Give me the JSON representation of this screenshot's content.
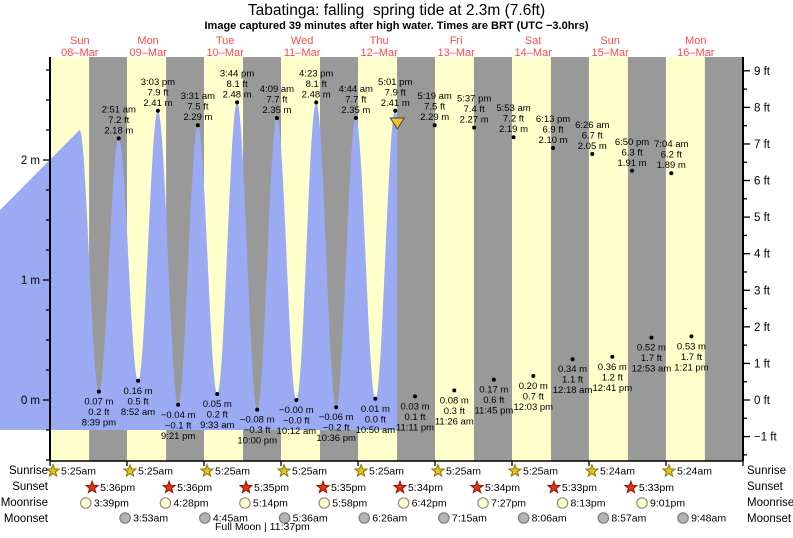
{
  "chart_data": {
    "type": "area",
    "title": "Tabatinga: falling  spring tide at 2.3m (7.6ft)",
    "subtitle": "Image captured 39 minutes after high water. Times are BRT (UTC −3.0hrs)",
    "days": [
      {
        "name": "Sun",
        "date": "08–Mar"
      },
      {
        "name": "Mon",
        "date": "09–Mar"
      },
      {
        "name": "Tue",
        "date": "10–Mar"
      },
      {
        "name": "Wed",
        "date": "11–Mar"
      },
      {
        "name": "Thu",
        "date": "12–Mar"
      },
      {
        "name": "Fri",
        "date": "13–Mar"
      },
      {
        "name": "Sat",
        "date": "14–Mar"
      },
      {
        "name": "Sun",
        "date": "15–Mar"
      },
      {
        "name": "Mon",
        "date": "16–Mar"
      }
    ],
    "y_axis_left": {
      "unit": "m",
      "labels": [
        {
          "value": 2,
          "label": "2 m"
        },
        {
          "value": 1,
          "label": "1 m"
        },
        {
          "value": 0,
          "label": "0 m"
        }
      ]
    },
    "y_axis_right": {
      "unit": "ft",
      "labels": [
        {
          "value": 9,
          "label": "9 ft"
        },
        {
          "value": 8,
          "label": "8 ft"
        },
        {
          "value": 7,
          "label": "7 ft"
        },
        {
          "value": 6,
          "label": "6 ft"
        },
        {
          "value": 5,
          "label": "5 ft"
        },
        {
          "value": 4,
          "label": "4 ft"
        },
        {
          "value": 3,
          "label": "3 ft"
        },
        {
          "value": 2,
          "label": "2 ft"
        },
        {
          "value": 1,
          "label": "1 ft"
        },
        {
          "value": 0,
          "label": "0 ft"
        },
        {
          "value": -1,
          "label": "−1 ft"
        }
      ]
    },
    "tide_events": [
      {
        "day": 0,
        "type": "low",
        "time": "8:39 pm",
        "m": "0.07 m",
        "ft": "0.2 ft"
      },
      {
        "day": 1,
        "type": "high",
        "time": "2:51 am",
        "m": "2.18 m",
        "ft": "7.2 ft"
      },
      {
        "day": 1,
        "type": "low",
        "time": "8:52 am",
        "m": "0.16 m",
        "ft": "0.5 ft"
      },
      {
        "day": 1,
        "type": "high",
        "time": "3:03 pm",
        "m": "2.41 m",
        "ft": "7.9 ft"
      },
      {
        "day": 1,
        "type": "low",
        "time": "9:21 pm",
        "m": "−0.04 m",
        "ft": "−0.1 ft"
      },
      {
        "day": 2,
        "type": "high",
        "time": "3:31 am",
        "m": "2.29 m",
        "ft": "7.5 ft"
      },
      {
        "day": 2,
        "type": "low",
        "time": "9:33 am",
        "m": "0.05 m",
        "ft": "0.2 ft"
      },
      {
        "day": 2,
        "type": "high",
        "time": "3:44 pm",
        "m": "2.48 m",
        "ft": "8.1 ft"
      },
      {
        "day": 2,
        "type": "low",
        "time": "10:00 pm",
        "m": "−0.08 m",
        "ft": "−0.3 ft"
      },
      {
        "day": 3,
        "type": "high",
        "time": "4:09 am",
        "m": "2.35 m",
        "ft": "7.7 ft"
      },
      {
        "day": 3,
        "type": "low",
        "time": "10:12 am",
        "m": "−0.00 m",
        "ft": "−0.0 ft"
      },
      {
        "day": 3,
        "type": "high",
        "time": "4:23 pm",
        "m": "2.48 m",
        "ft": "8.1 ft"
      },
      {
        "day": 3,
        "type": "low",
        "time": "10:36 pm",
        "m": "−0.06 m",
        "ft": "−0.2 ft"
      },
      {
        "day": 4,
        "type": "high",
        "time": "4:44 am",
        "m": "2.35 m",
        "ft": "7.7 ft"
      },
      {
        "day": 4,
        "type": "low",
        "time": "10:50 am",
        "m": "0.01 m",
        "ft": "0.0 ft"
      },
      {
        "day": 4,
        "type": "high",
        "time": "5:01 pm",
        "m": "2.41 m",
        "ft": "7.9 ft"
      },
      {
        "day": 4,
        "type": "low",
        "time": "11:11 pm",
        "m": "0.03 m",
        "ft": "0.1 ft"
      },
      {
        "day": 5,
        "type": "high",
        "time": "5:19 am",
        "m": "2.29 m",
        "ft": "7.5 ft"
      },
      {
        "day": 5,
        "type": "low",
        "time": "11:26 am",
        "m": "0.08 m",
        "ft": "0.3 ft"
      },
      {
        "day": 5,
        "type": "high",
        "time": "5:37 pm",
        "m": "2.27 m",
        "ft": "7.4 ft"
      },
      {
        "day": 5,
        "type": "low",
        "time": "11:45 pm",
        "m": "0.17 m",
        "ft": "0.6 ft"
      },
      {
        "day": 6,
        "type": "high",
        "time": "5:53 am",
        "m": "2.19 m",
        "ft": "7.2 ft"
      },
      {
        "day": 6,
        "type": "low",
        "time": "12:03 pm",
        "m": "0.20 m",
        "ft": "0.7 ft"
      },
      {
        "day": 6,
        "type": "high",
        "time": "6:13 pm",
        "m": "2.10 m",
        "ft": "6.9 ft"
      },
      {
        "day": 7,
        "type": "low",
        "time": "12:18 am",
        "m": "0.34 m",
        "ft": "1.1 ft"
      },
      {
        "day": 7,
        "type": "high",
        "time": "6:26 am",
        "m": "2.05 m",
        "ft": "6.7 ft"
      },
      {
        "day": 7,
        "type": "low",
        "time": "12:41 pm",
        "m": "0.36 m",
        "ft": "1.2 ft"
      },
      {
        "day": 7,
        "type": "high",
        "time": "6:50 pm",
        "m": "1.91 m",
        "ft": "6.3 ft"
      },
      {
        "day": 8,
        "type": "low",
        "time": "12:53 am",
        "m": "0.52 m",
        "ft": "1.7 ft"
      },
      {
        "day": 8,
        "type": "high",
        "time": "7:04 am",
        "m": "1.89 m",
        "ft": "6.2 ft"
      },
      {
        "day": 8,
        "type": "low",
        "time": "1:21 pm",
        "m": "0.53 m",
        "ft": "1.7 ft"
      }
    ],
    "current_marker": {
      "day": 4,
      "time": "5:40 pm"
    }
  },
  "astro": {
    "rows": [
      {
        "label": "Sunrise",
        "icon": "sunrise-star",
        "entries": [
          {
            "day": 0,
            "time": "5:25am"
          },
          {
            "day": 1,
            "time": "5:25am"
          },
          {
            "day": 2,
            "time": "5:25am"
          },
          {
            "day": 3,
            "time": "5:25am"
          },
          {
            "day": 4,
            "time": "5:25am"
          },
          {
            "day": 5,
            "time": "5:25am"
          },
          {
            "day": 6,
            "time": "5:25am"
          },
          {
            "day": 7,
            "time": "5:24am"
          },
          {
            "day": 8,
            "time": "5:24am"
          }
        ]
      },
      {
        "label": "Sunset",
        "icon": "sunset-star",
        "entries": [
          {
            "day": 0,
            "time": "5:36pm"
          },
          {
            "day": 1,
            "time": "5:36pm"
          },
          {
            "day": 2,
            "time": "5:35pm"
          },
          {
            "day": 3,
            "time": "5:35pm"
          },
          {
            "day": 4,
            "time": "5:34pm"
          },
          {
            "day": 5,
            "time": "5:34pm"
          },
          {
            "day": 6,
            "time": "5:33pm"
          },
          {
            "day": 7,
            "time": "5:33pm"
          }
        ]
      },
      {
        "label": "Moonrise",
        "icon": "moonrise-circle",
        "entries": [
          {
            "day": 0,
            "time": "3:39pm"
          },
          {
            "day": 1,
            "time": "4:28pm"
          },
          {
            "day": 2,
            "time": "5:14pm"
          },
          {
            "day": 3,
            "time": "5:58pm"
          },
          {
            "day": 4,
            "time": "6:42pm"
          },
          {
            "day": 5,
            "time": "7:27pm"
          },
          {
            "day": 6,
            "time": "8:13pm"
          },
          {
            "day": 7,
            "time": "9:01pm"
          }
        ]
      },
      {
        "label": "Moonset",
        "icon": "moonset-circle",
        "entries": [
          {
            "day": 1,
            "time": "3:53am"
          },
          {
            "day": 2,
            "time": "4:45am"
          },
          {
            "day": 3,
            "time": "5:36am"
          },
          {
            "day": 4,
            "time": "6:26am"
          },
          {
            "day": 5,
            "time": "7:15am"
          },
          {
            "day": 6,
            "time": "8:06am"
          },
          {
            "day": 7,
            "time": "8:57am"
          },
          {
            "day": 8,
            "time": "9:48am"
          }
        ]
      }
    ],
    "note": "Full Moon | 11:37pm",
    "note_day": 2,
    "note_time": "11:37pm"
  },
  "colors": {
    "daylight_band": "#ffffcc",
    "night_band": "#999999",
    "tide_fill": "#9aabf4",
    "day_label": "#fa4b4b",
    "sunrise_star": "#e3c122",
    "sunrise_star_edge": "#8a7500",
    "sunset_star": "#e03318",
    "sunset_star_edge": "#8f1600",
    "moonrise_circle": "#ffffcc",
    "moonrise_circle_edge": "#8c8c8c",
    "moonset_circle": "#b3b3b3",
    "moonset_circle_edge": "#7d7d7d",
    "marker": "#f2c12e",
    "axis": "#000000"
  }
}
